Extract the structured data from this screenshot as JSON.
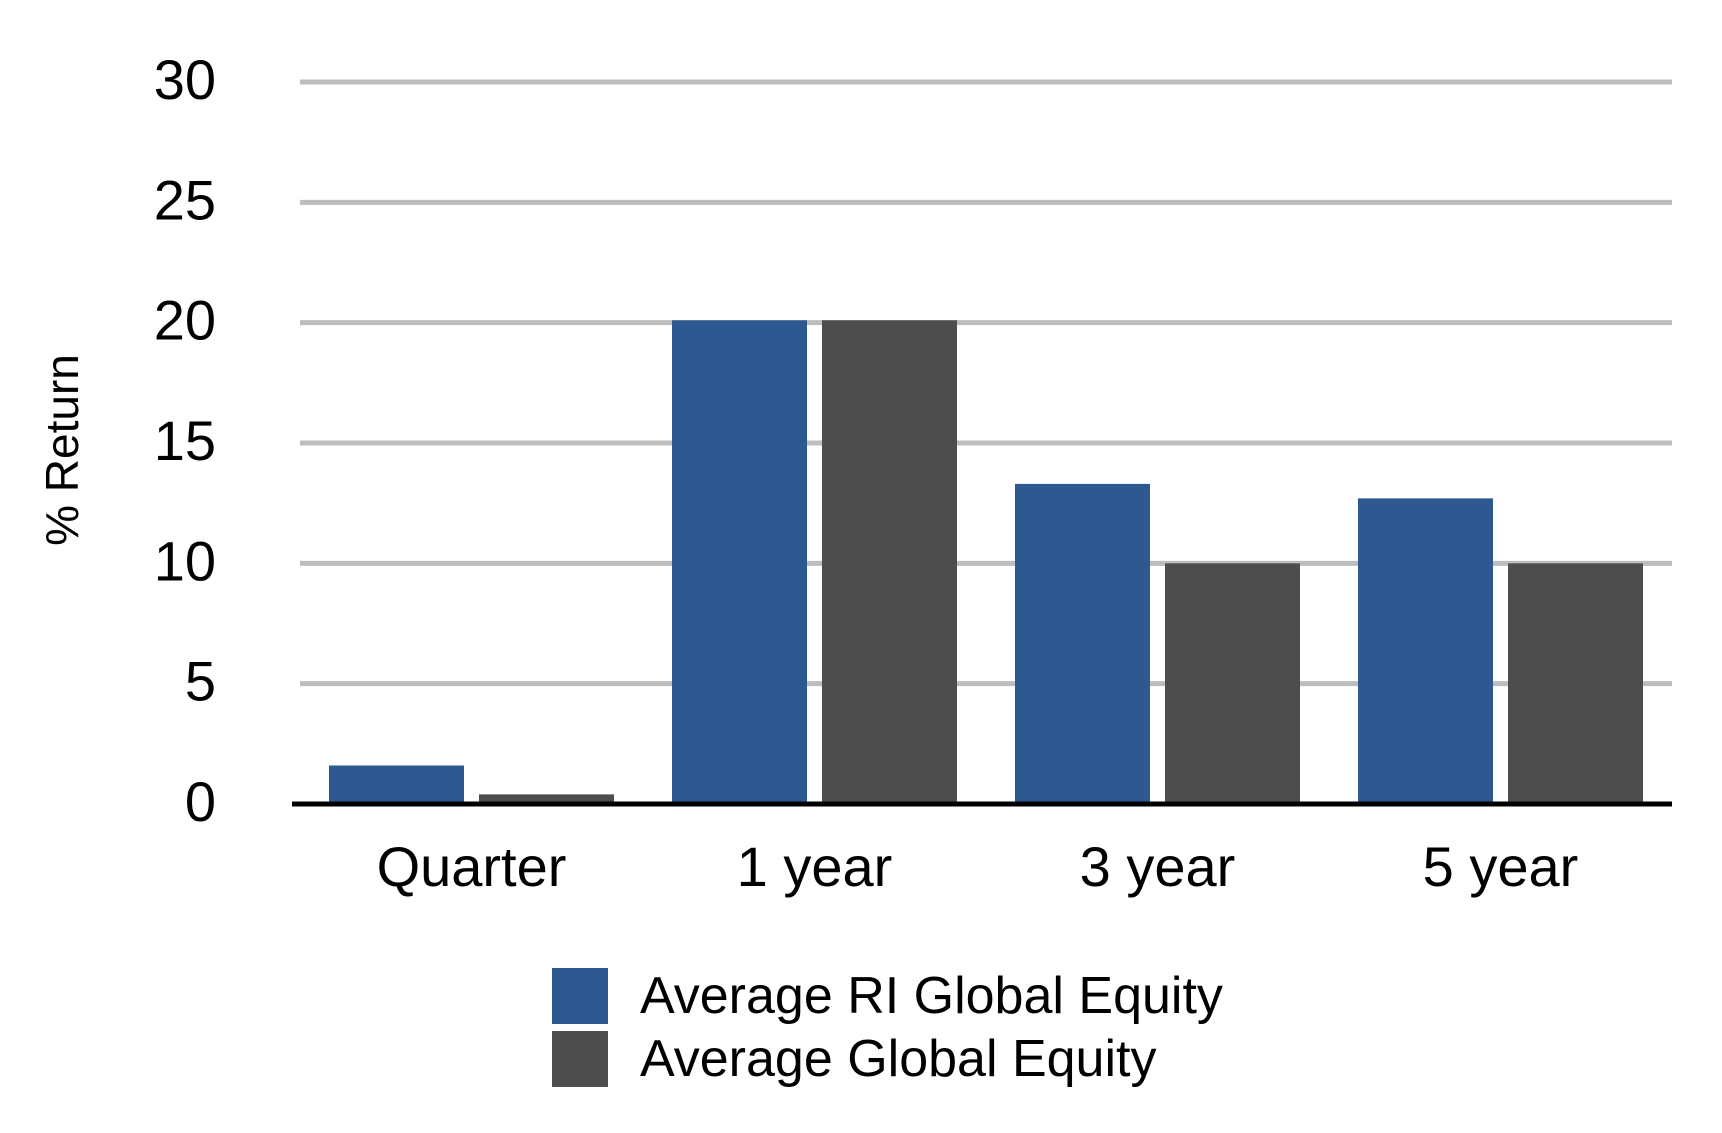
{
  "chart_data": {
    "type": "bar",
    "title": "",
    "xlabel": "",
    "ylabel": "% Return",
    "ylim": [
      0,
      30
    ],
    "yticks": [
      0,
      5,
      10,
      15,
      20,
      25,
      30
    ],
    "grid": true,
    "legend_position": "bottom-center",
    "categories": [
      "Quarter",
      "1 year",
      "3 year",
      "5 year"
    ],
    "series": [
      {
        "name": "Average RI Global Equity",
        "color": "#2d5890",
        "values": [
          1.6,
          20.1,
          13.3,
          12.7
        ]
      },
      {
        "name": "Average Global Equity",
        "color": "#4d4d4d",
        "values": [
          0.4,
          20.1,
          10.0,
          10.0
        ]
      }
    ]
  }
}
